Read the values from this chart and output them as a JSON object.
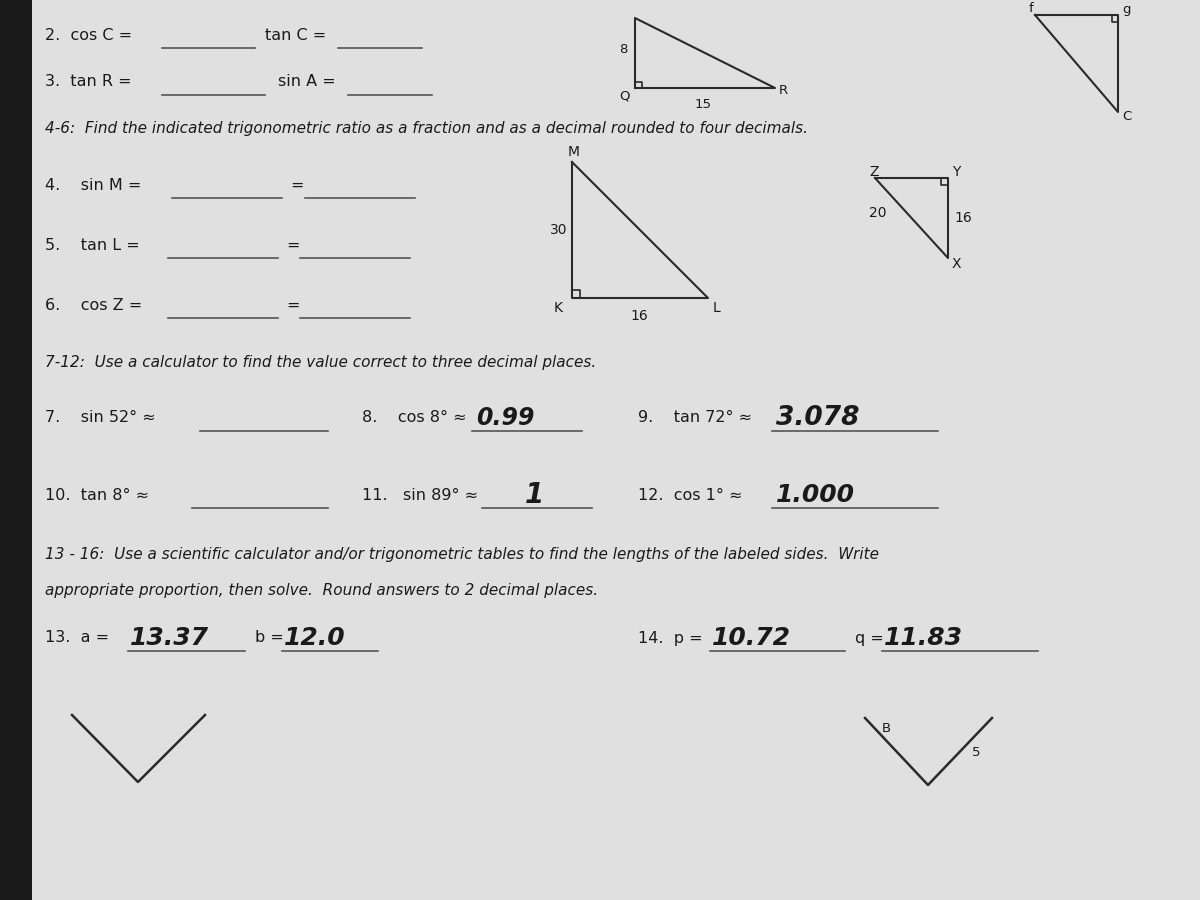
{
  "bg_color": "#c8c8c8",
  "paper_color": "#e0e0e0",
  "shadow_color": "#1a1a1a",
  "text_color": "#1a1a1a",
  "line_color": "#2a2a2a",
  "handwritten_color": "#1a1a1a",
  "underline_color": "#555555",
  "figsize": [
    12,
    9
  ],
  "dpi": 100,
  "line1_label": "2.  cos C =",
  "line1_label2": "tan C =",
  "line2_label": "3.  tan R =",
  "line2_label2": "sin A =",
  "section46_title": "4-6:  Find the indicated trigonometric ratio as a fraction and as a decimal rounded to four decimals.",
  "q4_label": "4.    sin M =",
  "q5_label": "5.    tan L =",
  "q6_label": "6.    cos Z =",
  "section712_title": "7-12:  Use a calculator to find the value correct to three decimal places.",
  "q7_label": "7.    sin 52° ≈",
  "q8_label": "8.    cos 8° ≈",
  "q8_answer": "0.99",
  "q9_label": "9.    tan 72° ≈",
  "q9_answer": "3.078",
  "q10_label": "10.  tan 8° ≈",
  "q11_label": "11.   sin 89° ≈",
  "q11_answer": "1",
  "q12_label": "12.  cos 1° ≈",
  "q12_answer": "1.000",
  "section1316_line1": "13 - 16:  Use a scientific calculator and/or trigonometric tables to find the lengths of the labeled sides.  Write",
  "section1316_line2": "appropriate proportion, then solve.  Round answers to 2 decimal places.",
  "q13_label": "13.  a =",
  "q13_answer_a": "13.37",
  "q13_label_b": "b =",
  "q13_answer_b": "12.0",
  "q14_label": "14.  p =",
  "q14_answer_p": "10.72",
  "q14_label_q": "q =",
  "q14_answer_q": "11.83"
}
